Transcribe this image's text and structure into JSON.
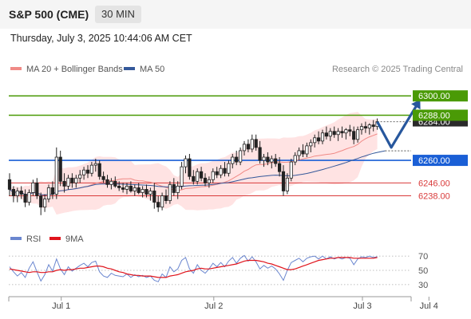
{
  "header": {
    "title": "S&P 500 (CME)",
    "interval": "30 MIN",
    "timestamp": "Thursday, July 3, 2025 10:44:06 AM CET"
  },
  "legend": {
    "ma20_label": "MA 20 + Bollinger Bands",
    "ma50_label": "MA 50",
    "ma20_color": "#f08a86",
    "ma50_color": "#34589a",
    "credit": "Research © 2025 Trading Central"
  },
  "rsi_legend": {
    "rsi_label": "RSI",
    "ma_label": "9MA",
    "rsi_color": "#6a86cf",
    "ma_color": "#e0141c"
  },
  "chart_data": [
    {
      "type": "candlestick",
      "y_range": [
        6215,
        6312
      ],
      "x_tick_labels": [
        "Jul 1",
        "Jul 2",
        "Jul 3",
        "Jul 4"
      ],
      "x_tick_bars": [
        13,
        52,
        90,
        107
      ],
      "levels": [
        {
          "value": 6300.0,
          "label": "6300.00",
          "kind": "resistance",
          "color": "#4a9a06"
        },
        {
          "value": 6288.0,
          "label": "6288.00",
          "kind": "resistance",
          "color": "#4a9a06"
        },
        {
          "value": 6260.0,
          "label": "6260.00",
          "kind": "pivot",
          "color": "#1a5fd6"
        },
        {
          "value": 6246.0,
          "label": "6246.00",
          "kind": "support",
          "color": "#d93a3a"
        },
        {
          "value": 6238.0,
          "label": "6238.00",
          "kind": "support",
          "color": "#d93a3a"
        }
      ],
      "last_price": {
        "value": 6284.0,
        "label": "6284.00"
      },
      "forecast_path": [
        [
          6284,
          0
        ],
        [
          6268,
          2.5
        ],
        [
          6291,
          6.5
        ]
      ],
      "candles": [
        [
          6248,
          6252,
          6238,
          6242
        ],
        [
          6242,
          6244,
          6234,
          6238
        ],
        [
          6238,
          6243,
          6234,
          6241
        ],
        [
          6241,
          6244,
          6236,
          6239
        ],
        [
          6239,
          6242,
          6231,
          6234
        ],
        [
          6234,
          6242,
          6232,
          6240
        ],
        [
          6240,
          6248,
          6238,
          6246
        ],
        [
          6246,
          6249,
          6236,
          6238
        ],
        [
          6238,
          6240,
          6226,
          6231
        ],
        [
          6231,
          6239,
          6228,
          6236
        ],
        [
          6236,
          6245,
          6234,
          6243
        ],
        [
          6243,
          6247,
          6236,
          6239
        ],
        [
          6239,
          6268,
          6236,
          6262
        ],
        [
          6262,
          6266,
          6244,
          6247
        ],
        [
          6247,
          6252,
          6240,
          6244
        ],
        [
          6244,
          6251,
          6242,
          6249
        ],
        [
          6249,
          6252,
          6243,
          6246
        ],
        [
          6246,
          6251,
          6243,
          6249
        ],
        [
          6249,
          6254,
          6246,
          6251
        ],
        [
          6251,
          6256,
          6248,
          6254
        ],
        [
          6254,
          6257,
          6249,
          6252
        ],
        [
          6252,
          6259,
          6250,
          6257
        ],
        [
          6257,
          6261,
          6253,
          6258
        ],
        [
          6258,
          6260,
          6248,
          6250
        ],
        [
          6250,
          6253,
          6246,
          6248
        ],
        [
          6248,
          6251,
          6243,
          6245
        ],
        [
          6245,
          6249,
          6242,
          6247
        ],
        [
          6247,
          6250,
          6243,
          6244
        ],
        [
          6244,
          6247,
          6241,
          6243
        ],
        [
          6243,
          6246,
          6240,
          6242
        ],
        [
          6242,
          6246,
          6239,
          6244
        ],
        [
          6244,
          6247,
          6240,
          6241
        ],
        [
          6241,
          6245,
          6238,
          6243
        ],
        [
          6243,
          6246,
          6239,
          6240
        ],
        [
          6240,
          6244,
          6237,
          6242
        ],
        [
          6242,
          6245,
          6237,
          6239
        ],
        [
          6239,
          6243,
          6235,
          6241
        ],
        [
          6241,
          6246,
          6230,
          6234
        ],
        [
          6234,
          6238,
          6228,
          6231
        ],
        [
          6231,
          6240,
          6229,
          6238
        ],
        [
          6238,
          6242,
          6233,
          6235
        ],
        [
          6235,
          6247,
          6233,
          6245
        ],
        [
          6245,
          6249,
          6238,
          6240
        ],
        [
          6240,
          6247,
          6236,
          6244
        ],
        [
          6244,
          6259,
          6242,
          6256
        ],
        [
          6256,
          6263,
          6252,
          6261
        ],
        [
          6261,
          6264,
          6248,
          6250
        ],
        [
          6250,
          6254,
          6245,
          6247
        ],
        [
          6247,
          6255,
          6245,
          6253
        ],
        [
          6253,
          6256,
          6247,
          6249
        ],
        [
          6249,
          6252,
          6244,
          6246
        ],
        [
          6246,
          6250,
          6243,
          6248
        ],
        [
          6248,
          6255,
          6246,
          6253
        ],
        [
          6253,
          6256,
          6249,
          6251
        ],
        [
          6251,
          6257,
          6249,
          6255
        ],
        [
          6255,
          6259,
          6250,
          6252
        ],
        [
          6252,
          6260,
          6250,
          6258
        ],
        [
          6258,
          6264,
          6255,
          6262
        ],
        [
          6262,
          6266,
          6257,
          6259
        ],
        [
          6259,
          6268,
          6257,
          6266
        ],
        [
          6266,
          6272,
          6263,
          6270
        ],
        [
          6270,
          6273,
          6265,
          6267
        ],
        [
          6267,
          6276,
          6265,
          6273
        ],
        [
          6273,
          6276,
          6266,
          6268
        ],
        [
          6268,
          6272,
          6258,
          6260
        ],
        [
          6260,
          6264,
          6256,
          6262
        ],
        [
          6262,
          6265,
          6257,
          6259
        ],
        [
          6259,
          6263,
          6255,
          6261
        ],
        [
          6261,
          6264,
          6256,
          6258
        ],
        [
          6258,
          6262,
          6250,
          6253
        ],
        [
          6253,
          6257,
          6238,
          6241
        ],
        [
          6241,
          6252,
          6239,
          6249
        ],
        [
          6249,
          6261,
          6247,
          6259
        ],
        [
          6259,
          6265,
          6257,
          6263
        ],
        [
          6263,
          6268,
          6260,
          6266
        ],
        [
          6266,
          6270,
          6262,
          6264
        ],
        [
          6264,
          6271,
          6262,
          6269
        ],
        [
          6269,
          6273,
          6265,
          6271
        ],
        [
          6271,
          6276,
          6268,
          6274
        ],
        [
          6274,
          6278,
          6270,
          6272
        ],
        [
          6272,
          6279,
          6270,
          6277
        ],
        [
          6277,
          6281,
          6273,
          6275
        ],
        [
          6275,
          6280,
          6272,
          6278
        ],
        [
          6278,
          6281,
          6274,
          6276
        ],
        [
          6276,
          6280,
          6272,
          6278
        ],
        [
          6278,
          6281,
          6274,
          6277
        ],
        [
          6277,
          6280,
          6273,
          6279
        ],
        [
          6279,
          6282,
          6275,
          6278
        ],
        [
          6278,
          6281,
          6270,
          6273
        ],
        [
          6273,
          6281,
          6271,
          6279
        ],
        [
          6279,
          6283,
          6276,
          6281
        ],
        [
          6281,
          6284,
          6277,
          6280
        ],
        [
          6280,
          6283,
          6276,
          6282
        ],
        [
          6282,
          6285,
          6278,
          6281
        ],
        [
          6281,
          6286,
          6279,
          6284
        ]
      ]
    },
    {
      "type": "line",
      "indicator": "RSI",
      "y_ticks": [
        30,
        50,
        70
      ],
      "y_range": [
        22,
        78
      ],
      "series": [
        {
          "name": "RSI",
          "values": [
            55,
            48,
            42,
            47,
            40,
            53,
            62,
            48,
            35,
            44,
            58,
            49,
            66,
            52,
            44,
            55,
            49,
            53,
            57,
            60,
            55,
            61,
            63,
            48,
            42,
            40,
            46,
            43,
            42,
            41,
            45,
            40,
            44,
            41,
            43,
            40,
            42,
            36,
            34,
            45,
            40,
            55,
            48,
            52,
            64,
            68,
            52,
            46,
            58,
            50,
            46,
            52,
            60,
            55,
            61,
            55,
            63,
            68,
            60,
            67,
            71,
            63,
            69,
            62,
            52,
            57,
            53,
            56,
            52,
            45,
            36,
            50,
            61,
            64,
            67,
            62,
            67,
            69,
            70,
            66,
            70,
            66,
            69,
            66,
            68,
            66,
            68,
            67,
            58,
            66,
            69,
            68,
            70,
            68,
            69
          ]
        },
        {
          "name": "9MA",
          "values": [
            52,
            51,
            50,
            49,
            48,
            47,
            48,
            48,
            47,
            47,
            48,
            48,
            50,
            51,
            50,
            51,
            51,
            52,
            53,
            53,
            54,
            55,
            56,
            56,
            55,
            53,
            52,
            50,
            48,
            47,
            45,
            44,
            43,
            43,
            42,
            42,
            42,
            41,
            40,
            40,
            40,
            42,
            43,
            44,
            46,
            48,
            49,
            50,
            52,
            53,
            52,
            52,
            53,
            54,
            55,
            56,
            57,
            58,
            59,
            61,
            63,
            64,
            64,
            64,
            63,
            62,
            60,
            59,
            57,
            55,
            53,
            51,
            51,
            52,
            54,
            56,
            58,
            60,
            62,
            64,
            65,
            66,
            67,
            67,
            68,
            68,
            68,
            68,
            67,
            67,
            67,
            67,
            67,
            67,
            68
          ]
        }
      ]
    }
  ]
}
